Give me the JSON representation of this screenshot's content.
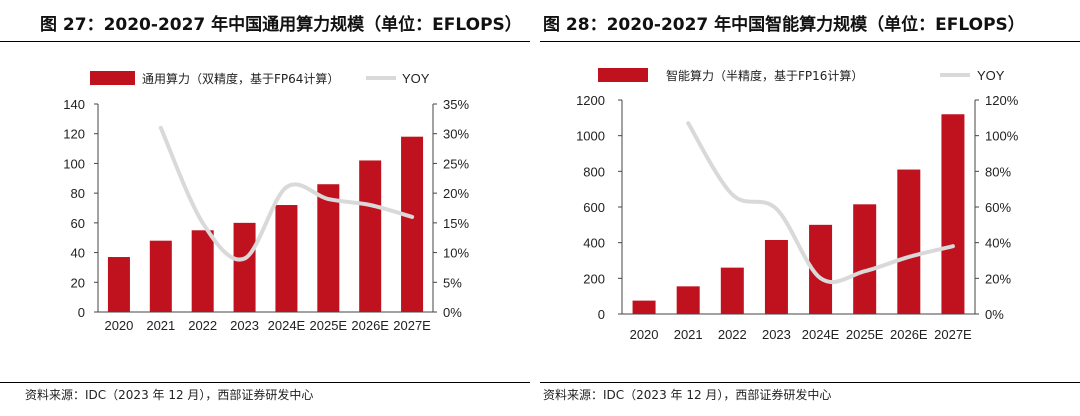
{
  "figures": [
    {
      "title": "图 27：2020-2027 年中国通用算力规模（单位：EFLOPS）",
      "source": "资料来源：IDC（2023 年 12 月），西部证券研发中心",
      "chart_data": {
        "type": "bar",
        "title": "图 27：2020-2027 年中国通用算力规模（单位：EFLOPS）",
        "categories": [
          "2020",
          "2021",
          "2022",
          "2023",
          "2024E",
          "2025E",
          "2026E",
          "2027E"
        ],
        "series": [
          {
            "name": "通用算力（双精度，基于FP64计算）",
            "type": "bar",
            "axis": "left",
            "values": [
              37,
              48,
              55,
              60,
              72,
              86,
              102,
              118
            ],
            "color": "#C0111F"
          },
          {
            "name": "YOY",
            "type": "line",
            "axis": "right",
            "values": [
              null,
              0.31,
              0.15,
              0.09,
              0.21,
              0.19,
              0.18,
              0.16
            ],
            "color": "#D9D9D9"
          }
        ],
        "ylim": [
          0,
          140
        ],
        "yticks": [
          "0",
          "20",
          "40",
          "60",
          "80",
          "100",
          "120",
          "140"
        ],
        "y2lim": [
          0,
          0.35
        ],
        "y2ticks": [
          "0%",
          "5%",
          "10%",
          "15%",
          "20%",
          "25%",
          "30%",
          "35%"
        ],
        "grid": false,
        "legend": "top"
      }
    },
    {
      "title": "图 28：2020-2027 年中国智能算力规模（单位：EFLOPS）",
      "source": "资料来源：IDC（2023 年 12 月），西部证券研发中心",
      "chart_data": {
        "type": "bar",
        "title": "图 28：2020-2027 年中国智能算力规模（单位：EFLOPS）",
        "categories": [
          "2020",
          "2021",
          "2022",
          "2023",
          "2024E",
          "2025E",
          "2026E",
          "2027E"
        ],
        "series": [
          {
            "name": "智能算力（半精度，基于FP16计算）",
            "type": "bar",
            "axis": "left",
            "values": [
              75,
              155,
              260,
              415,
              500,
              615,
              810,
              1120
            ],
            "color": "#C0111F"
          },
          {
            "name": "YOY",
            "type": "line",
            "axis": "right",
            "values": [
              null,
              1.07,
              0.67,
              0.59,
              0.2,
              0.24,
              0.32,
              0.38
            ],
            "color": "#D9D9D9"
          }
        ],
        "ylim": [
          0,
          1200
        ],
        "yticks": [
          "0",
          "200",
          "400",
          "600",
          "800",
          "1000",
          "1200"
        ],
        "y2lim": [
          0,
          1.2
        ],
        "y2ticks": [
          "0%",
          "20%",
          "40%",
          "60%",
          "80%",
          "100%",
          "120%"
        ],
        "grid": false,
        "legend": "top"
      }
    }
  ]
}
